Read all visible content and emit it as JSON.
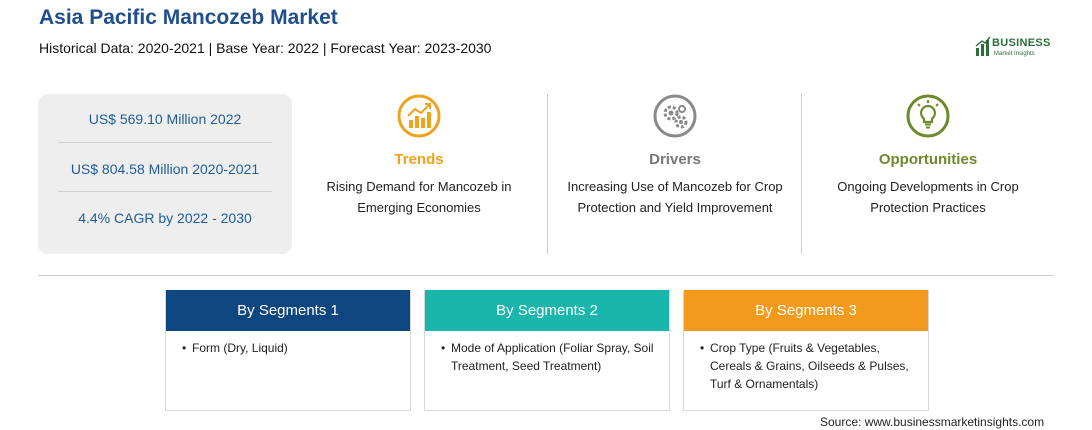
{
  "header": {
    "title": "Asia Pacific Mancozeb Market",
    "subtitle": "Historical Data: 2020-2021 | Base Year: 2022 | Forecast Year: 2023-2030"
  },
  "logo": {
    "name": "BUSINESS",
    "tagline": "Market Insights"
  },
  "stats": [
    {
      "text": "US$ 569.10 Million 2022"
    },
    {
      "text": "US$ 804.58 Million 2020-2021"
    },
    {
      "text": "4.4% CAGR by 2022 - 2030"
    }
  ],
  "features": [
    {
      "label": "Trends",
      "description": "Rising Demand for Mancozeb in Emerging Economies",
      "icon": "growth-chart-icon",
      "color": "#f0a21d"
    },
    {
      "label": "Drivers",
      "description": "Increasing Use of Mancozeb for Crop Protection and Yield Improvement",
      "icon": "gears-icon",
      "color": "#777777"
    },
    {
      "label": "Opportunities",
      "description": "Ongoing Developments in Crop Protection Practices",
      "icon": "lightbulb-icon",
      "color": "#6e8a2b"
    }
  ],
  "segments": [
    {
      "title": "By Segments 1",
      "color": "#10467f",
      "items": [
        "Form (Dry, Liquid)"
      ]
    },
    {
      "title": "By Segments 2",
      "color": "#1ab6ac",
      "items": [
        "Mode of Application (Foliar Spray, Soil Treatment, Seed Treatment)"
      ]
    },
    {
      "title": "By Segments 3",
      "color": "#f39a1d",
      "items": [
        "Crop Type (Fruits & Vegetables, Cereals & Grains, Oilseeds & Pulses, Turf & Ornamentals)"
      ]
    }
  ],
  "footer": {
    "source": "Source: www.businessmarketinsights.com"
  }
}
